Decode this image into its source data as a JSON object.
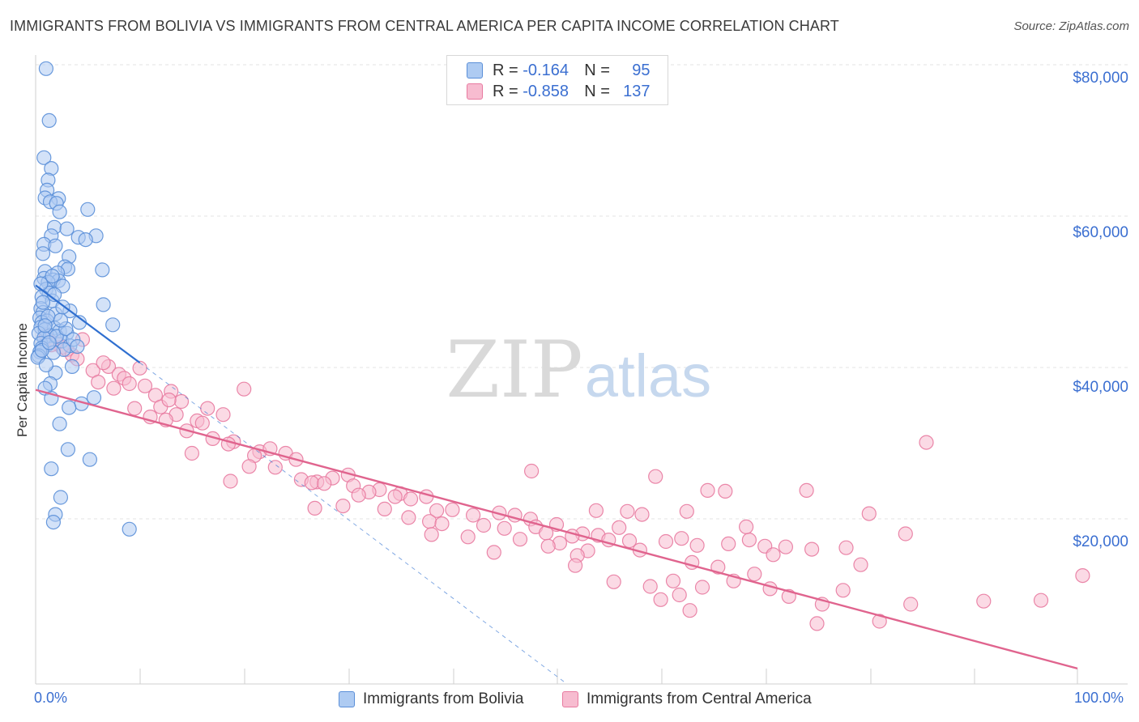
{
  "title": "IMMIGRANTS FROM BOLIVIA VS IMMIGRANTS FROM CENTRAL AMERICA PER CAPITA INCOME CORRELATION CHART",
  "source": "Source: ZipAtlas.com",
  "watermark": {
    "zip": "ZIP",
    "atlas": "atlas"
  },
  "legend": {
    "series1": {
      "r_label": "R =",
      "r_value": "-0.164",
      "n_label": "N =",
      "n_value": "95"
    },
    "series2": {
      "r_label": "R =",
      "r_value": "-0.858",
      "n_label": "N =",
      "n_value": "137"
    }
  },
  "colors": {
    "bolivia_fill": "#aecbf2",
    "bolivia_stroke": "#5a8fd8",
    "bolivia_line": "#2f6fd0",
    "central_fill": "#f7bcd0",
    "central_stroke": "#e87aa0",
    "central_line": "#e0648e",
    "axis_text": "#3b6fd1",
    "grid": "#e3e3e3"
  },
  "chart_data": {
    "type": "scatter",
    "title": "IMMIGRANTS FROM BOLIVIA VS IMMIGRANTS FROM CENTRAL AMERICA PER CAPITA INCOME CORRELATION CHART",
    "xlabel": "",
    "ylabel": "Per Capita Income",
    "xlim": [
      0,
      100
    ],
    "ylim": [
      0,
      80000
    ],
    "x_tick_labels": [
      "0.0%",
      "100.0%"
    ],
    "y_ticks": [
      20000,
      40000,
      60000,
      80000
    ],
    "y_tick_labels": [
      "$20,000",
      "$40,000",
      "$60,000",
      "$80,000"
    ],
    "grid": true,
    "series": [
      {
        "name": "Immigrants from Bolivia",
        "r": -0.164,
        "n": 95,
        "points": [
          [
            1.0,
            79500
          ],
          [
            1.3,
            72800
          ],
          [
            0.8,
            68000
          ],
          [
            1.5,
            66600
          ],
          [
            1.2,
            65100
          ],
          [
            1.1,
            63800
          ],
          [
            0.9,
            62800
          ],
          [
            2.2,
            62700
          ],
          [
            1.4,
            62300
          ],
          [
            2.0,
            62100
          ],
          [
            5.0,
            61300
          ],
          [
            2.3,
            61000
          ],
          [
            1.8,
            59000
          ],
          [
            3.0,
            58800
          ],
          [
            1.5,
            57900
          ],
          [
            5.8,
            57900
          ],
          [
            4.1,
            57700
          ],
          [
            4.8,
            57400
          ],
          [
            0.8,
            56800
          ],
          [
            1.9,
            56600
          ],
          [
            0.7,
            55600
          ],
          [
            3.2,
            55200
          ],
          [
            2.8,
            53900
          ],
          [
            3.1,
            53600
          ],
          [
            6.4,
            53500
          ],
          [
            0.9,
            53300
          ],
          [
            2.1,
            53100
          ],
          [
            0.8,
            52400
          ],
          [
            1.7,
            52200
          ],
          [
            2.2,
            52100
          ],
          [
            1.2,
            51900
          ],
          [
            2.6,
            51400
          ],
          [
            1.0,
            51000
          ],
          [
            1.3,
            50500
          ],
          [
            0.6,
            50000
          ],
          [
            1.6,
            49500
          ],
          [
            6.5,
            49000
          ],
          [
            0.5,
            48500
          ],
          [
            3.3,
            48200
          ],
          [
            0.7,
            48000
          ],
          [
            1.9,
            47800
          ],
          [
            0.4,
            47300
          ],
          [
            1.1,
            46900
          ],
          [
            0.6,
            46700
          ],
          [
            4.2,
            46700
          ],
          [
            7.4,
            46400
          ],
          [
            0.5,
            46100
          ],
          [
            1.8,
            46000
          ],
          [
            0.9,
            45800
          ],
          [
            2.3,
            45600
          ],
          [
            0.3,
            45300
          ],
          [
            3.0,
            45300
          ],
          [
            1.4,
            45000
          ],
          [
            0.8,
            44700
          ],
          [
            2.5,
            44300
          ],
          [
            0.5,
            44000
          ],
          [
            1.1,
            43800
          ],
          [
            3.3,
            43700
          ],
          [
            0.6,
            43400
          ],
          [
            2.7,
            43200
          ],
          [
            0.4,
            42900
          ],
          [
            1.7,
            42800
          ],
          [
            0.3,
            42400
          ],
          [
            0.2,
            42200
          ],
          [
            3.5,
            41000
          ],
          [
            1.9,
            40200
          ],
          [
            1.4,
            38800
          ],
          [
            0.9,
            38200
          ],
          [
            5.6,
            37000
          ],
          [
            1.5,
            36900
          ],
          [
            4.4,
            36200
          ],
          [
            3.2,
            35700
          ],
          [
            2.3,
            33600
          ],
          [
            3.1,
            30300
          ],
          [
            5.2,
            29000
          ],
          [
            1.5,
            27800
          ],
          [
            2.4,
            24100
          ],
          [
            1.9,
            21900
          ],
          [
            1.7,
            20900
          ],
          [
            9.0,
            20000
          ],
          [
            1.2,
            47500
          ],
          [
            2.0,
            44900
          ],
          [
            0.7,
            49300
          ],
          [
            1.6,
            52700
          ],
          [
            2.9,
            45900
          ],
          [
            0.5,
            51700
          ],
          [
            3.6,
            44500
          ],
          [
            1.0,
            41200
          ],
          [
            2.4,
            47000
          ],
          [
            0.6,
            43100
          ],
          [
            1.8,
            50300
          ],
          [
            4.0,
            43600
          ],
          [
            0.9,
            46300
          ],
          [
            1.3,
            44100
          ],
          [
            2.6,
            48700
          ]
        ]
      },
      {
        "name": "Immigrants from Central America",
        "r": -0.858,
        "n": 137,
        "points": [
          [
            1.0,
            45000
          ],
          [
            2.0,
            44000
          ],
          [
            2.5,
            43500
          ],
          [
            3.0,
            43200
          ],
          [
            1.5,
            43800
          ],
          [
            4.5,
            44500
          ],
          [
            3.5,
            42500
          ],
          [
            4.0,
            42000
          ],
          [
            7.0,
            41000
          ],
          [
            5.5,
            40500
          ],
          [
            8.0,
            40000
          ],
          [
            6.0,
            39000
          ],
          [
            8.5,
            39500
          ],
          [
            9.0,
            38800
          ],
          [
            10.5,
            38500
          ],
          [
            7.5,
            38200
          ],
          [
            20.0,
            38100
          ],
          [
            13.0,
            37800
          ],
          [
            11.5,
            37300
          ],
          [
            14.0,
            36500
          ],
          [
            12.0,
            35800
          ],
          [
            9.5,
            35600
          ],
          [
            16.5,
            35600
          ],
          [
            13.5,
            34800
          ],
          [
            18.0,
            34800
          ],
          [
            11.0,
            34500
          ],
          [
            12.5,
            34100
          ],
          [
            15.5,
            34000
          ],
          [
            16.0,
            33700
          ],
          [
            14.5,
            32700
          ],
          [
            17.0,
            31700
          ],
          [
            19.0,
            31300
          ],
          [
            18.5,
            31000
          ],
          [
            21.5,
            30000
          ],
          [
            24.0,
            29800
          ],
          [
            21.0,
            29500
          ],
          [
            15.0,
            29800
          ],
          [
            25.0,
            29000
          ],
          [
            23.0,
            28000
          ],
          [
            20.5,
            28100
          ],
          [
            30.0,
            27000
          ],
          [
            28.5,
            26600
          ],
          [
            25.5,
            26400
          ],
          [
            27.0,
            26100
          ],
          [
            26.5,
            26000
          ],
          [
            30.5,
            25600
          ],
          [
            33.0,
            25100
          ],
          [
            32.0,
            24800
          ],
          [
            35.0,
            24600
          ],
          [
            31.0,
            24400
          ],
          [
            34.5,
            24200
          ],
          [
            37.5,
            24200
          ],
          [
            36.0,
            23900
          ],
          [
            29.5,
            23000
          ],
          [
            26.8,
            22700
          ],
          [
            33.5,
            22600
          ],
          [
            38.5,
            22400
          ],
          [
            40.0,
            22500
          ],
          [
            42.0,
            21800
          ],
          [
            44.5,
            22100
          ],
          [
            46.0,
            21800
          ],
          [
            47.5,
            21300
          ],
          [
            35.8,
            21500
          ],
          [
            37.8,
            21000
          ],
          [
            39.0,
            20700
          ],
          [
            43.0,
            20500
          ],
          [
            45.0,
            20100
          ],
          [
            48.0,
            20300
          ],
          [
            50.0,
            20600
          ],
          [
            49.0,
            19500
          ],
          [
            52.5,
            19400
          ],
          [
            51.5,
            19100
          ],
          [
            54.0,
            19200
          ],
          [
            38.0,
            19300
          ],
          [
            41.5,
            19000
          ],
          [
            46.5,
            18700
          ],
          [
            55.0,
            18600
          ],
          [
            50.3,
            18200
          ],
          [
            57.0,
            18500
          ],
          [
            60.5,
            18400
          ],
          [
            62.0,
            18800
          ],
          [
            63.5,
            17900
          ],
          [
            66.5,
            18100
          ],
          [
            68.5,
            18600
          ],
          [
            70.0,
            17800
          ],
          [
            72.0,
            17700
          ],
          [
            49.2,
            17800
          ],
          [
            53.0,
            17200
          ],
          [
            58.0,
            17300
          ],
          [
            44.0,
            17000
          ],
          [
            52.0,
            16600
          ],
          [
            63.0,
            15700
          ],
          [
            51.8,
            15300
          ],
          [
            65.5,
            15100
          ],
          [
            69.0,
            14200
          ],
          [
            67.0,
            13300
          ],
          [
            61.2,
            13300
          ],
          [
            55.5,
            13200
          ],
          [
            59.0,
            12600
          ],
          [
            64.0,
            12500
          ],
          [
            70.5,
            12300
          ],
          [
            77.5,
            12100
          ],
          [
            72.3,
            11300
          ],
          [
            61.8,
            11500
          ],
          [
            60.0,
            10900
          ],
          [
            75.5,
            10300
          ],
          [
            84.0,
            10300
          ],
          [
            91.0,
            10700
          ],
          [
            96.5,
            10800
          ],
          [
            62.8,
            9500
          ],
          [
            81.0,
            8100
          ],
          [
            75.0,
            7800
          ],
          [
            83.5,
            19400
          ],
          [
            80.0,
            22000
          ],
          [
            74.5,
            17400
          ],
          [
            68.2,
            20300
          ],
          [
            47.6,
            27500
          ],
          [
            56.8,
            22300
          ],
          [
            64.5,
            25000
          ],
          [
            59.5,
            26800
          ],
          [
            58.2,
            21900
          ],
          [
            53.8,
            22400
          ],
          [
            62.5,
            22300
          ],
          [
            56.0,
            20200
          ],
          [
            70.8,
            16700
          ],
          [
            74.0,
            25000
          ],
          [
            85.5,
            31200
          ],
          [
            66.2,
            24900
          ],
          [
            77.8,
            17600
          ],
          [
            79.2,
            15400
          ],
          [
            100.5,
            14000
          ],
          [
            6.5,
            41500
          ],
          [
            10.0,
            40800
          ],
          [
            12.8,
            36700
          ],
          [
            22.5,
            30400
          ],
          [
            27.7,
            25900
          ],
          [
            18.7,
            26200
          ]
        ]
      }
    ],
    "trend_lines": [
      {
        "series": "Immigrants from Bolivia",
        "solid": [
          [
            0,
            51500
          ],
          [
            10,
            41500
          ]
        ],
        "dashed": [
          [
            10,
            41500
          ],
          [
            51,
            0
          ]
        ]
      },
      {
        "series": "Immigrants from Central America",
        "solid": [
          [
            0,
            38000
          ],
          [
            100,
            2000
          ]
        ]
      }
    ]
  },
  "bottom_legend": {
    "item1": "Immigrants from Bolivia",
    "item2": "Immigrants from Central America"
  }
}
